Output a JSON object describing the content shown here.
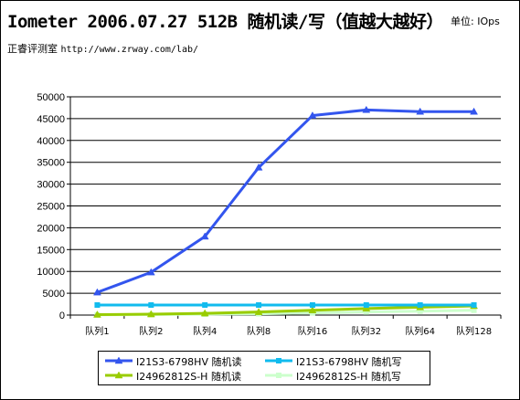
{
  "header": {
    "title": "Iometer 2006.07.27 512B 随机读/写（值越大越好）",
    "unit_label": "单位: IOps",
    "lab_name": "正睿评测室",
    "lab_url": "http://www.zrway.com/lab/"
  },
  "chart_data": {
    "type": "line",
    "title": "Iometer 2006.07.27 512B 随机读/写（值越大越好）",
    "xlabel": "",
    "ylabel": "",
    "ylim": [
      0,
      50000
    ],
    "yticks": [
      0,
      5000,
      10000,
      15000,
      20000,
      25000,
      30000,
      35000,
      40000,
      45000,
      50000
    ],
    "categories": [
      "队列1",
      "队列2",
      "队列4",
      "队列8",
      "队列16",
      "队列32",
      "队列64",
      "队列128"
    ],
    "grid": true,
    "legend_position": "bottom",
    "series": [
      {
        "name": "I21S3-6798HV 随机读",
        "color": "#3355ee",
        "marker": "triangle",
        "values": [
          5200,
          9800,
          18000,
          33800,
          45700,
          47000,
          46600,
          46600
        ]
      },
      {
        "name": "I21S3-6798HV 随机写",
        "color": "#11bbee",
        "marker": "square",
        "values": [
          2300,
          2300,
          2300,
          2300,
          2300,
          2300,
          2300,
          2300
        ]
      },
      {
        "name": "I24962812S-H 随机读",
        "color": "#99cc00",
        "marker": "triangle",
        "values": [
          100,
          200,
          400,
          700,
          1100,
          1500,
          1800,
          2100
        ]
      },
      {
        "name": "I24962812S-H 随机写",
        "color": "#ccffcc",
        "marker": "square",
        "values": [
          50,
          100,
          200,
          300,
          500,
          700,
          900,
          1100
        ]
      }
    ]
  }
}
